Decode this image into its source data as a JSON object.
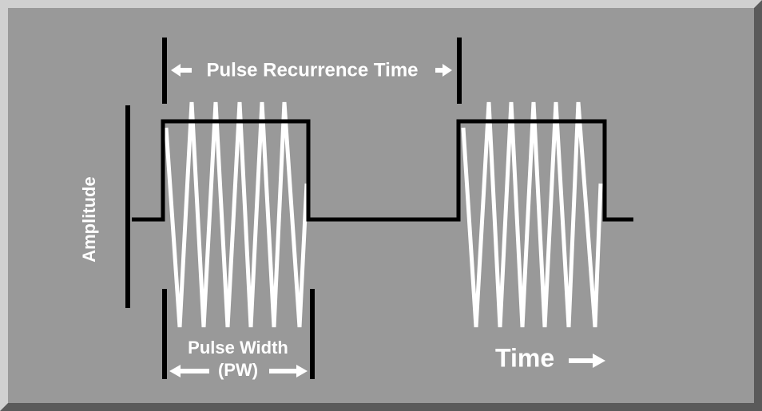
{
  "labels": {
    "pulse_recurrence_time": "Pulse Recurrence Time",
    "amplitude": "Amplitude",
    "pulse_width": "Pulse Width",
    "pw": "(PW)",
    "time": "Time"
  }
}
